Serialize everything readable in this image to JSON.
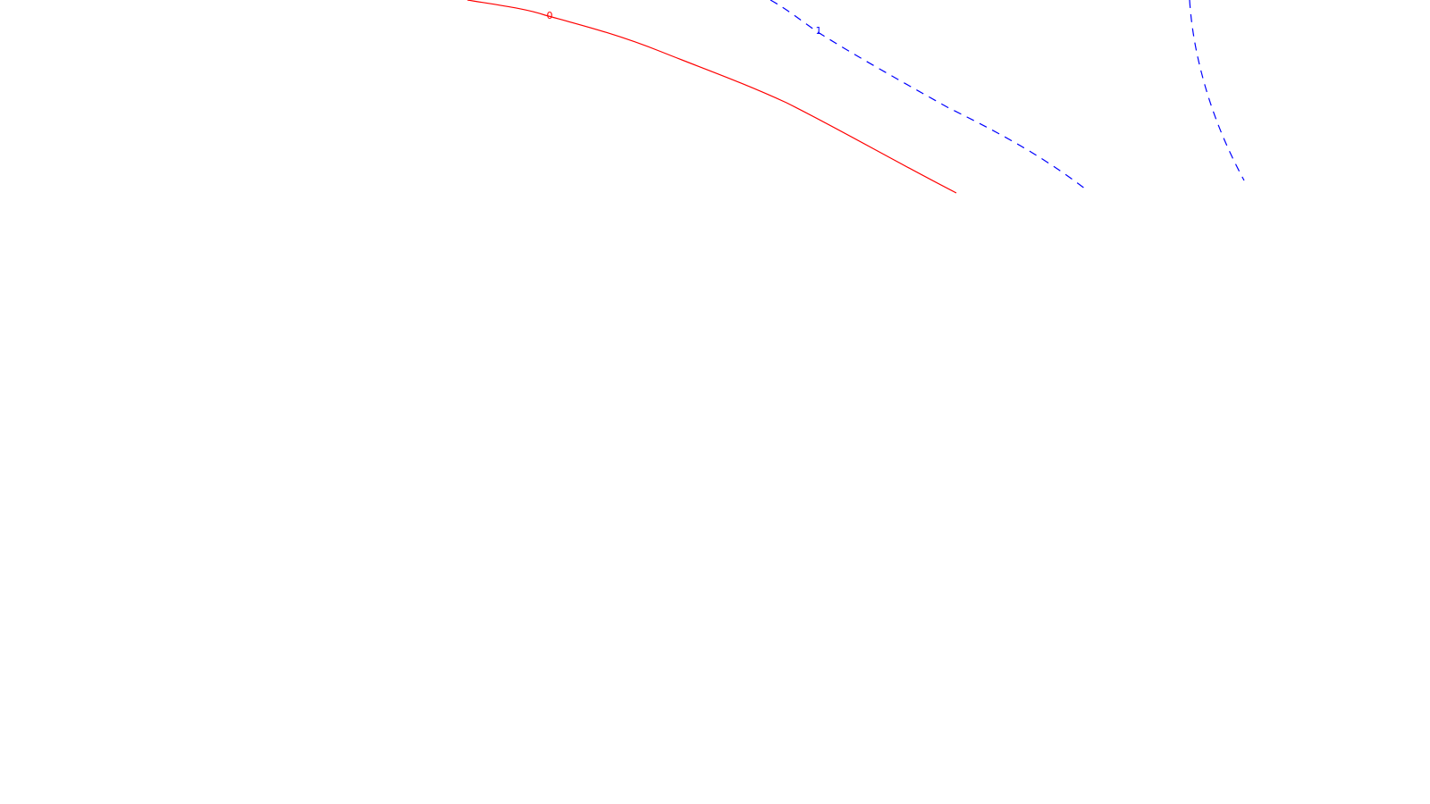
{
  "contours": [
    {
      "level_label": "0",
      "style": "solid",
      "color": "#ff0000"
    },
    {
      "level_label": "1",
      "style": "dashed",
      "color": "#0000ff"
    },
    {
      "level_label": "",
      "style": "dashed",
      "color": "#0000ff"
    }
  ],
  "background_color": "#ffffff"
}
